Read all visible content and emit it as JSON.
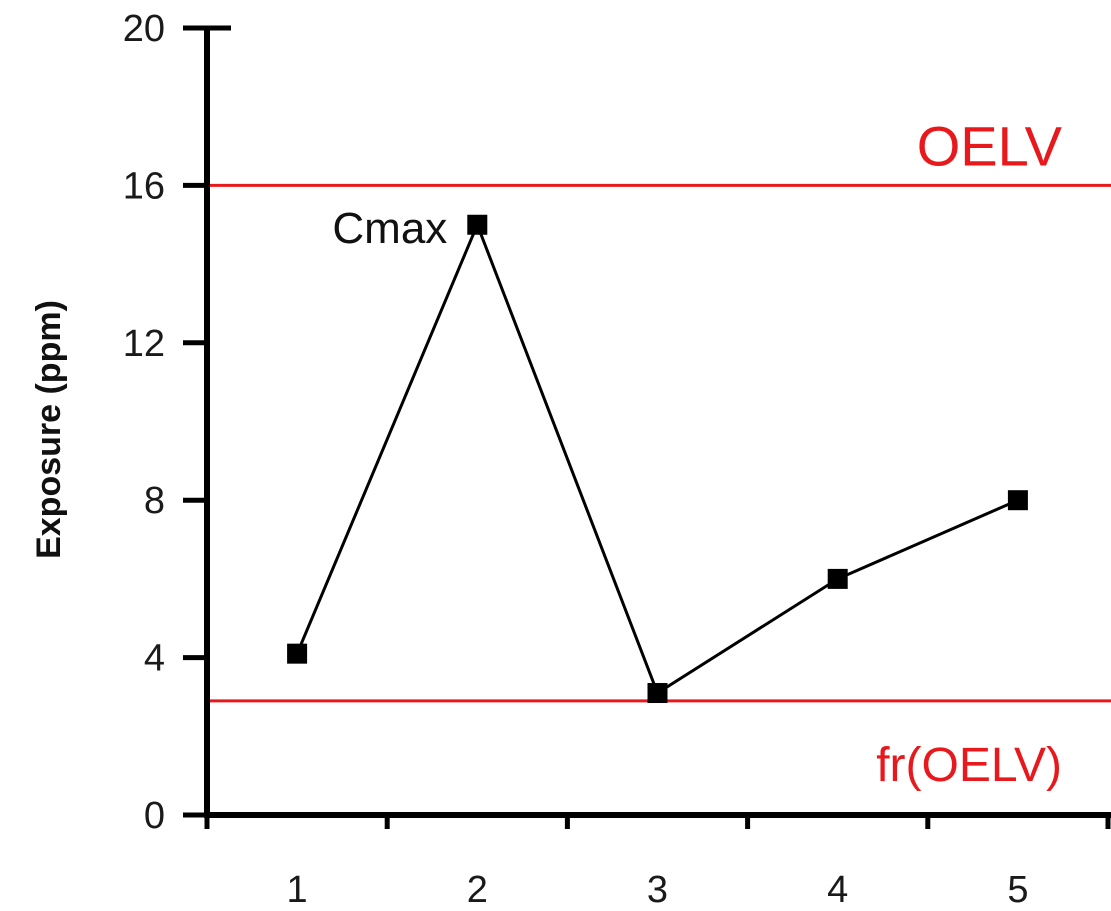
{
  "chart_data": {
    "type": "line",
    "title": "",
    "xlabel": "",
    "ylabel": "Exposure (ppm)",
    "x": [
      1,
      2,
      3,
      4,
      5
    ],
    "x_tick_labels": [
      "1",
      "2",
      "3",
      "4",
      "5"
    ],
    "xlim": [
      0.5,
      5.5
    ],
    "ylim": [
      0,
      20
    ],
    "y_ticks": [
      0,
      4,
      8,
      12,
      16,
      20
    ],
    "y_tick_labels": [
      "0",
      "4",
      "8",
      "12",
      "16",
      "20"
    ],
    "series": [
      {
        "values": [
          4.1,
          15.0,
          3.1,
          6.0,
          8.0
        ],
        "color": "#000000",
        "marker": "square"
      }
    ],
    "reference_lines": [
      {
        "label": "OELV",
        "y": 16.0,
        "color": "#e8191c"
      },
      {
        "label": "fr(OELV)",
        "y": 2.9,
        "color": "#e8191c"
      }
    ],
    "annotations": [
      {
        "text": "Cmax",
        "x": 2,
        "y": 15.0
      }
    ],
    "grid": false,
    "legend": "none"
  }
}
